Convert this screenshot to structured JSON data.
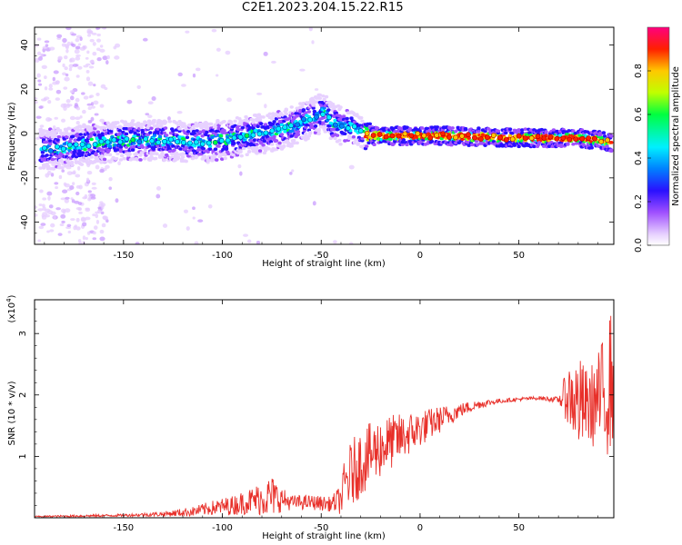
{
  "title": "C2E1.2023.204.15.22.R15",
  "chart_data": [
    {
      "type": "heatmap",
      "xlabel": "Height of straight line (km)",
      "ylabel": "Frequency (Hz)",
      "xlim": [
        -195,
        98
      ],
      "ylim": [
        -50,
        48
      ],
      "xticks": [
        -150,
        -100,
        -50,
        0,
        50
      ],
      "xtick_labels": [
        "-150",
        "-100",
        "-50",
        "0",
        "50"
      ],
      "yticks": [
        -40,
        -20,
        0,
        20,
        40
      ],
      "ytick_labels": [
        "-40",
        "-20",
        "0",
        "20",
        "40"
      ],
      "colorbar": {
        "label": "Normalized spectral amplitude",
        "range": [
          0,
          1
        ],
        "ticks": [
          0.0,
          0.2,
          0.4,
          0.6,
          0.8
        ],
        "tick_labels": [
          "0.0",
          "0.2",
          "0.4",
          "0.6",
          "0.8"
        ]
      },
      "ridge": {
        "x": [
          -185,
          -170,
          -150,
          -130,
          -110,
          -95,
          -80,
          -65,
          -55,
          -48,
          -45,
          -40,
          -35,
          -30,
          -25,
          -20,
          -10,
          0,
          10,
          50,
          80,
          90,
          97
        ],
        "frequency": [
          -7,
          -5,
          -3,
          -3,
          -4,
          -2,
          0,
          3,
          7,
          10,
          5,
          4,
          3,
          1,
          -1,
          -1,
          -1,
          -1,
          -1,
          -2,
          -2,
          -3,
          -4
        ]
      },
      "grid": false
    },
    {
      "type": "line",
      "xlabel": "Height of straight line (km)",
      "ylabel": "SNR (10 * v/v)",
      "yscale_label": "(x10",
      "yscale_exponent": "4",
      "yscale_suffix": ")",
      "xlim": [
        -195,
        98
      ],
      "ylim": [
        0,
        3.55
      ],
      "xticks": [
        -150,
        -100,
        -50,
        0,
        50
      ],
      "xtick_labels": [
        "-150",
        "-100",
        "-50",
        "0",
        "50"
      ],
      "yticks": [
        1,
        2,
        3
      ],
      "ytick_labels": [
        "1",
        "2",
        "3"
      ],
      "series": [
        {
          "color": "#e8302a",
          "x": [
            -195,
            -170,
            -150,
            -130,
            -115,
            -105,
            -95,
            -85,
            -75,
            -70,
            -65,
            -55,
            -45,
            -40,
            -38,
            -35,
            -30,
            -20,
            -10,
            0,
            10,
            20,
            30,
            40,
            50,
            60,
            70,
            75,
            80,
            85,
            90,
            95,
            97
          ],
          "y": [
            0.02,
            0.03,
            0.04,
            0.06,
            0.1,
            0.16,
            0.2,
            0.28,
            0.35,
            0.3,
            0.25,
            0.25,
            0.22,
            0.3,
            0.55,
            0.7,
            0.9,
            1.15,
            1.3,
            1.45,
            1.6,
            1.75,
            1.85,
            1.9,
            1.93,
            1.95,
            1.92,
            2.0,
            1.85,
            1.8,
            1.9,
            2.1,
            2.3
          ],
          "noise": [
            0.01,
            0.02,
            0.02,
            0.04,
            0.08,
            0.12,
            0.16,
            0.22,
            0.35,
            0.2,
            0.12,
            0.12,
            0.12,
            0.25,
            0.45,
            0.55,
            0.55,
            0.5,
            0.4,
            0.3,
            0.22,
            0.12,
            0.07,
            0.04,
            0.03,
            0.03,
            0.05,
            0.5,
            0.8,
            0.6,
            0.8,
            1.1,
            1.2
          ]
        }
      ],
      "grid": false
    }
  ]
}
